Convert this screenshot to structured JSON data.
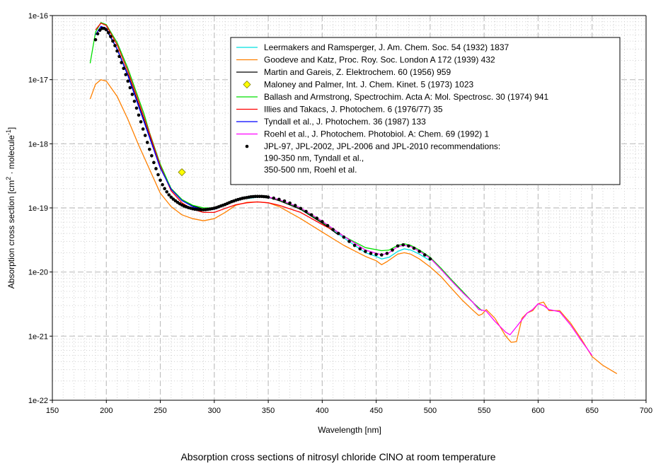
{
  "chart_data": {
    "type": "line",
    "title": "Absorption cross sections of nitrosyl chloride ClNO at room temperature",
    "xlabel": "Wavelength [nm]",
    "ylabel": "Absorption cross section [cm² · molecule⁻¹]",
    "ylabel_parts": {
      "base": "Absorption cross section [cm",
      "sup1": "2",
      "mid": " · molecule",
      "sup2": "-1",
      "end": "]"
    },
    "xlim": [
      150,
      700
    ],
    "ylim": [
      1e-22,
      1e-16
    ],
    "yscale": "log",
    "grid": true,
    "legend_position": "top-right",
    "x_ticks": [
      150,
      200,
      250,
      300,
      350,
      400,
      450,
      500,
      550,
      600,
      650,
      700
    ],
    "y_ticks": [
      {
        "value": 1e-16,
        "label": "1e-16"
      },
      {
        "value": 1e-17,
        "label": "1e-17"
      },
      {
        "value": 1e-18,
        "label": "1e-18"
      },
      {
        "value": 1e-19,
        "label": "1e-19"
      },
      {
        "value": 1e-20,
        "label": "1e-20"
      },
      {
        "value": 1e-21,
        "label": "1e-21"
      },
      {
        "value": 1e-22,
        "label": "1e-22"
      }
    ],
    "series": [
      {
        "name": "Leermakers and Ramsperger, J. Am. Chem. Soc. 54 (1932) 1837",
        "color": "#00e0e0",
        "kind": "line",
        "x": [
          330,
          345,
          360,
          380,
          400,
          420,
          440,
          450,
          455,
          462,
          470,
          476,
          482,
          490,
          500
        ],
        "y": [
          1.4e-19,
          1.5e-19,
          1.35e-19,
          9.5e-20,
          5.8e-20,
          3.4e-20,
          2e-20,
          1.75e-20,
          1.6e-20,
          1.7e-20,
          2.1e-20,
          2.3e-20,
          2.2e-20,
          1.9e-20,
          1.5e-20
        ]
      },
      {
        "name": "Goodeve and Katz, Proc. Roy. Soc. London A 172 (1939) 432",
        "color": "#ff8000",
        "kind": "line",
        "x": [
          185,
          190,
          195,
          200,
          210,
          220,
          230,
          240,
          250,
          260,
          270,
          280,
          290,
          300,
          310,
          320,
          330,
          340,
          350,
          360,
          380,
          400,
          420,
          440,
          450,
          455,
          460,
          470,
          476,
          482,
          490,
          500,
          510,
          520,
          530,
          540,
          545,
          548,
          552,
          560,
          570,
          575,
          580,
          585,
          590,
          595,
          600,
          605,
          610,
          620,
          630,
          640,
          650,
          660,
          673
        ],
        "y": [
          5e-18,
          8.5e-18,
          1e-17,
          9.5e-18,
          5.5e-18,
          2.4e-18,
          9.5e-19,
          4e-19,
          1.7e-19,
          1.05e-19,
          7.8e-20,
          6.8e-20,
          6.3e-20,
          6.8e-20,
          8.5e-20,
          1.1e-19,
          1.22e-19,
          1.24e-19,
          1.2e-19,
          1.05e-19,
          6.8e-20,
          4.2e-20,
          2.6e-20,
          1.75e-20,
          1.5e-20,
          1.3e-20,
          1.45e-20,
          1.9e-20,
          2e-20,
          1.9e-20,
          1.6e-20,
          1.2e-20,
          8.5e-21,
          5.5e-21,
          3.6e-21,
          2.5e-21,
          2.1e-21,
          2.2e-21,
          2.6e-21,
          1.9e-21,
          1e-21,
          8e-22,
          8.2e-22,
          1.9e-21,
          2.3e-21,
          2.5e-21,
          3.2e-21,
          3.4e-21,
          2.5e-21,
          2.5e-21,
          1.6e-21,
          9e-22,
          4.8e-22,
          3.5e-22,
          2.6e-22
        ]
      },
      {
        "name": "Martin and Gareis, Z. Elektrochem. 60 (1956) 959",
        "color": "#000000",
        "kind": "line",
        "x": [
          195,
          200,
          210,
          220,
          230,
          240,
          250,
          260,
          270,
          280,
          290,
          300,
          310,
          320,
          330,
          340,
          350,
          360,
          380,
          400,
          415
        ],
        "y": [
          6.5e-17,
          6e-17,
          3e-17,
          1.2e-17,
          4e-18,
          1.3e-18,
          4.2e-19,
          2e-19,
          1.35e-19,
          1.08e-19,
          9.5e-20,
          9.6e-20,
          1.12e-19,
          1.3e-19,
          1.45e-19,
          1.5e-19,
          1.47e-19,
          1.3e-19,
          9.5e-20,
          5.8e-20,
          3.8e-20
        ]
      },
      {
        "name": "Maloney and Palmer,  Int. J. Chem. Kinet. 5 (1973) 1023",
        "color": "#ffff00",
        "stroke": "#808000",
        "kind": "marker-diamond",
        "x": [
          270
        ],
        "y": [
          3.6e-19
        ]
      },
      {
        "name": "Ballash and Armstrong,  Spectrochim. Acta A: Mol. Spectrosc. 30 (1974) 941",
        "color": "#00e000",
        "kind": "line",
        "x": [
          185,
          190,
          195,
          200,
          210,
          220,
          230,
          235,
          240,
          250,
          260,
          270,
          280,
          290,
          300,
          310,
          320,
          330,
          340,
          350,
          360,
          380,
          400,
          420,
          440,
          455,
          462,
          470,
          476,
          482,
          490,
          500,
          510,
          520,
          530,
          540,
          548
        ],
        "y": [
          1.8e-17,
          5.5e-17,
          7.8e-17,
          7.2e-17,
          3.8e-17,
          1.5e-17,
          5e-18,
          2.9e-18,
          1.5e-18,
          4.8e-19,
          2e-19,
          1.35e-19,
          1.1e-19,
          1e-19,
          1e-19,
          1.12e-19,
          1.3e-19,
          1.45e-19,
          1.5e-19,
          1.48e-19,
          1.33e-19,
          9.8e-20,
          6e-20,
          3.6e-20,
          2.4e-20,
          2.15e-20,
          2.2e-20,
          2.6e-20,
          2.75e-20,
          2.6e-20,
          2.2e-20,
          1.7e-20,
          1.15e-20,
          7.5e-21,
          5e-21,
          3.3e-21,
          2.5e-21
        ]
      },
      {
        "name": "Illies and Takacs, J. Photochem. 6 (1976/77) 35",
        "color": "#ff0000",
        "kind": "line",
        "x": [
          190,
          195,
          200,
          210,
          220,
          230,
          240,
          250,
          260,
          270,
          280,
          290,
          300,
          310,
          320,
          330,
          340,
          350,
          360,
          380,
          400,
          410
        ],
        "y": [
          6e-17,
          7.6e-17,
          7e-17,
          3.5e-17,
          1.35e-17,
          4.5e-18,
          1.45e-18,
          4.5e-19,
          1.85e-19,
          1.2e-19,
          9.5e-20,
          8.5e-20,
          8.5e-20,
          9.8e-20,
          1.12e-19,
          1.2e-19,
          1.24e-19,
          1.2e-19,
          1.1e-19,
          8.5e-20,
          5.5e-20,
          4.5e-20
        ]
      },
      {
        "name": "Tyndall et al., J. Photochem. 36 (1987) 133",
        "color": "#0000ff",
        "kind": "line",
        "x": [
          190,
          195,
          200,
          210,
          220,
          230,
          240,
          250,
          260,
          270,
          280,
          290,
          300,
          310,
          320,
          330,
          340,
          350
        ],
        "y": [
          5e-17,
          6.8e-17,
          6.3e-17,
          3e-17,
          1.15e-17,
          3.8e-18,
          1.25e-18,
          4.2e-19,
          1.95e-19,
          1.3e-19,
          1.05e-19,
          9.3e-20,
          9.5e-20,
          1.1e-19,
          1.3e-19,
          1.45e-19,
          1.5e-19,
          1.48e-19
        ]
      },
      {
        "name": "Roehl et al.,  J. Photochem. Photobiol. A: Chem. 69 (1992) 1",
        "color": "#ff00ff",
        "kind": "line",
        "x": [
          350,
          360,
          380,
          400,
          420,
          440,
          455,
          462,
          470,
          476,
          482,
          490,
          500,
          510,
          520,
          530,
          540,
          545,
          548,
          552,
          560,
          570,
          574,
          580,
          590,
          595,
          600,
          605,
          610,
          620,
          630,
          640,
          650
        ],
        "y": [
          1.48e-19,
          1.35e-19,
          1e-19,
          6.2e-20,
          3.6e-20,
          2.2e-20,
          1.85e-20,
          2e-20,
          2.5e-20,
          2.6e-20,
          2.5e-20,
          2.1e-20,
          1.65e-20,
          1.1e-20,
          7.2e-21,
          4.8e-21,
          3.3e-21,
          2.6e-21,
          2.55e-21,
          2.45e-21,
          1.7e-21,
          1.15e-21,
          1.05e-21,
          1.4e-21,
          2.3e-21,
          2.6e-21,
          3.2e-21,
          3e-21,
          2.6e-21,
          2.4e-21,
          1.5e-21,
          8.5e-22,
          5e-22
        ]
      },
      {
        "name": "JPL-97, JPL-2002, JPL-2006 and JPL-2010 recommendations:",
        "name_lines": [
          "190-350 nm, Tyndall et al.,",
          "350-500 nm, Roehl et al."
        ],
        "color": "#000000",
        "kind": "marker-dot",
        "x": [
          190,
          192,
          194,
          196,
          198,
          200,
          202,
          204,
          206,
          208,
          210,
          212,
          214,
          216,
          218,
          220,
          222,
          224,
          226,
          228,
          230,
          232,
          234,
          236,
          238,
          240,
          242,
          244,
          246,
          248,
          250,
          252,
          254,
          256,
          258,
          260,
          262,
          264,
          266,
          268,
          270,
          272,
          274,
          276,
          278,
          280,
          282,
          284,
          286,
          288,
          290,
          292,
          294,
          296,
          298,
          300,
          302,
          304,
          306,
          308,
          310,
          312,
          314,
          316,
          318,
          320,
          322,
          324,
          326,
          328,
          330,
          332,
          334,
          336,
          338,
          340,
          342,
          344,
          346,
          348,
          350,
          355,
          360,
          365,
          370,
          375,
          380,
          385,
          390,
          395,
          400,
          405,
          410,
          415,
          420,
          425,
          430,
          435,
          440,
          445,
          450,
          455,
          460,
          465,
          470,
          475,
          480,
          485,
          490,
          495,
          500
        ],
        "y": [
          4.2e-17,
          5.2e-17,
          5.9e-17,
          6.3e-17,
          6.3e-17,
          6e-17,
          5.4e-17,
          4.7e-17,
          4e-17,
          3.4e-17,
          2.8e-17,
          2.3e-17,
          1.85e-17,
          1.5e-17,
          1.2e-17,
          9.5e-18,
          7.5e-18,
          5.9e-18,
          4.6e-18,
          3.6e-18,
          2.8e-18,
          2.2e-18,
          1.7e-18,
          1.35e-18,
          1.05e-18,
          8.2e-19,
          6.5e-19,
          5.1e-19,
          4.1e-19,
          3.3e-19,
          2.7e-19,
          2.3e-19,
          2e-19,
          1.78e-19,
          1.6e-19,
          1.47e-19,
          1.37e-19,
          1.29e-19,
          1.22e-19,
          1.16e-19,
          1.11e-19,
          1.07e-19,
          1.04e-19,
          1.01e-19,
          9.9e-20,
          9.7e-20,
          9.55e-20,
          9.45e-20,
          9.4e-20,
          9.35e-20,
          9.35e-20,
          9.4e-20,
          9.5e-20,
          9.6e-20,
          9.75e-20,
          9.9e-20,
          1.01e-19,
          1.04e-19,
          1.07e-19,
          1.1e-19,
          1.13e-19,
          1.17e-19,
          1.21e-19,
          1.25e-19,
          1.28e-19,
          1.32e-19,
          1.35e-19,
          1.38e-19,
          1.41e-19,
          1.43e-19,
          1.45e-19,
          1.47e-19,
          1.49e-19,
          1.5e-19,
          1.51e-19,
          1.51e-19,
          1.51e-19,
          1.51e-19,
          1.5e-19,
          1.49e-19,
          1.47e-19,
          1.42e-19,
          1.36e-19,
          1.28e-19,
          1.19e-19,
          1.09e-19,
          9.8e-20,
          8.8e-20,
          7.8e-20,
          6.9e-20,
          6.1e-20,
          5.3e-20,
          4.6e-20,
          4e-20,
          3.5e-20,
          3e-20,
          2.6e-20,
          2.3e-20,
          2.1e-20,
          1.95e-20,
          1.88e-20,
          1.85e-20,
          1.95e-20,
          2.2e-20,
          2.55e-20,
          2.65e-20,
          2.55e-20,
          2.35e-20,
          2.1e-20,
          1.85e-20,
          1.6e-20
        ]
      }
    ]
  }
}
